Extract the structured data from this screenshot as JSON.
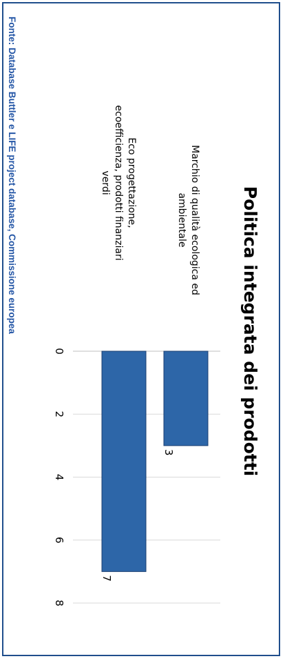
{
  "source_note": "Fonte: Database Buttler e LIFE project database, Commissione europea",
  "colors": {
    "frame": "#1f4e8c",
    "source_text": "#2456a6",
    "bar": "#2d66a8",
    "bar_edge": "#1b3f70",
    "grid": "#d9d9d9"
  },
  "chart_data": {
    "type": "bar",
    "orientation": "horizontal",
    "title": "Politica integrata dei prodotti",
    "categories": [
      "Marchio di qualità ecologica ed ambientale",
      "Eco progettazione, ecoefficienza, prodotti finanziari verdi"
    ],
    "values": [
      3,
      7
    ],
    "data_labels": [
      "3",
      "7"
    ],
    "xlim": [
      0,
      8
    ],
    "x_ticks": [
      "0",
      "2",
      "4",
      "6",
      "8"
    ],
    "grid": true,
    "legend": "none"
  }
}
